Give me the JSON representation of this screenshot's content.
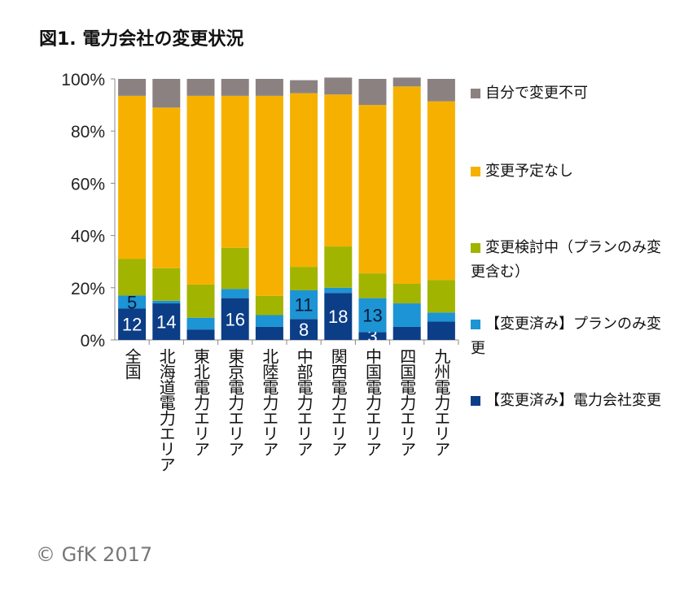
{
  "title": "図1. 電力会社の変更状況",
  "copyright": "© GfK 2017",
  "chart_data": {
    "type": "bar",
    "stacked": true,
    "percent_stacked": true,
    "categories": [
      "全国",
      "北海道電力エリア",
      "東北電力エリア",
      "東京電力エリア",
      "北陸電力エリア",
      "中部電力エリア",
      "関西電力エリア",
      "中国電力エリア",
      "四国電力エリア",
      "九州電力エリア"
    ],
    "series": [
      {
        "name": "【変更済み】電力会社変更",
        "color": "#0c3e87",
        "values": [
          12,
          14,
          4,
          16,
          5,
          8,
          18,
          3,
          5,
          7
        ],
        "labels": [
          "12",
          "14",
          null,
          "16",
          null,
          "8",
          "18",
          "3",
          null,
          null
        ],
        "label_color": "#ffffff"
      },
      {
        "name": "【変更済み】プランのみ変更",
        "color": "#1d94d4",
        "values": [
          5,
          1,
          4.5,
          3.5,
          4.5,
          11,
          2,
          13,
          9,
          3.5
        ],
        "labels": [
          "5",
          null,
          null,
          null,
          null,
          "11",
          null,
          "13",
          null,
          null
        ],
        "label_color": "#0a1a3a"
      },
      {
        "name": "変更検討中（プランのみ変更含む）",
        "color": "#a1b400",
        "values": [
          14,
          12.5,
          12.7,
          15.8,
          7.4,
          9,
          15.8,
          9.5,
          7.5,
          12.5
        ]
      },
      {
        "name": "変更予定なし",
        "color": "#f6b100",
        "values": [
          62.5,
          61.5,
          72.3,
          58.2,
          76.6,
          66.5,
          58.2,
          64.5,
          75.6,
          68.4
        ]
      },
      {
        "name": "自分で変更不可",
        "color": "#8c8181",
        "values": [
          6.5,
          11,
          6.5,
          6.5,
          6.5,
          5,
          6.5,
          10,
          3.4,
          8.6
        ]
      }
    ],
    "yticks": [
      "0%",
      "20%",
      "40%",
      "60%",
      "80%",
      "100%"
    ],
    "ylim": [
      0,
      100
    ],
    "grid": false,
    "legend": "right"
  }
}
